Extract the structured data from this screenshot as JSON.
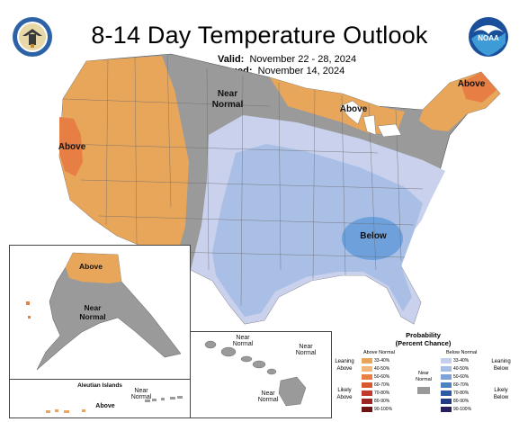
{
  "header": {
    "title": "8-14 Day Temperature Outlook",
    "valid_label": "Valid:",
    "valid_value": "November 22 - 28, 2024",
    "issued_label": "Issued:",
    "issued_value": "November 14, 2024"
  },
  "logos": {
    "left": "dept-of-commerce-seal",
    "right": "noaa-logo"
  },
  "map_labels": {
    "near_normal": "Near\nNormal",
    "above_west": "Above",
    "above_north": "Above",
    "above_ne": "Above",
    "below_se": "Below"
  },
  "alaska": {
    "above": "Above",
    "near_normal": "Near\nNormal",
    "aleutian_title": "Aleutian Islands",
    "aleutian_above": "Above",
    "aleutian_near": "Near\nNormal"
  },
  "hawaii": {
    "near1": "Near\nNormal",
    "near2": "Near\nNormal",
    "near3": "Near\nNormal"
  },
  "legend": {
    "title_line1": "Probability",
    "title_line2": "(Percent Chance)",
    "above_header": "Above Normal",
    "below_header": "Below Normal",
    "near_label": "Near\nNormal",
    "leaning_above": "Leaning\nAbove",
    "likely_above": "Likely\nAbove",
    "leaning_below": "Leaning\nBelow",
    "likely_below": "Likely\nBelow",
    "above_bins": [
      "33-40%",
      "40-50%",
      "50-60%",
      "60-70%",
      "70-80%",
      "80-90%",
      "90-100%"
    ],
    "below_bins": [
      "33-40%",
      "40-50%",
      "50-60%",
      "60-70%",
      "70-80%",
      "80-90%",
      "90-100%"
    ],
    "above_colors": [
      "#e8a65a",
      "#f0b67a",
      "#e77f44",
      "#d9572f",
      "#c13a2b",
      "#9e2422",
      "#6e1414"
    ],
    "below_colors": [
      "#c5cfeb",
      "#a8bde3",
      "#7fa3d8",
      "#4f82c2",
      "#2d5aa5",
      "#213b85",
      "#2a1f5e"
    ],
    "near_color": "#999999"
  },
  "colors": {
    "above_33_40": "#e8a65a",
    "above_50_60": "#e77f44",
    "near_normal": "#9a9a9a",
    "below_33_40": "#c9d1ec",
    "below_40_50": "#a9bfe5",
    "below_50_60": "#6ea1dc"
  }
}
